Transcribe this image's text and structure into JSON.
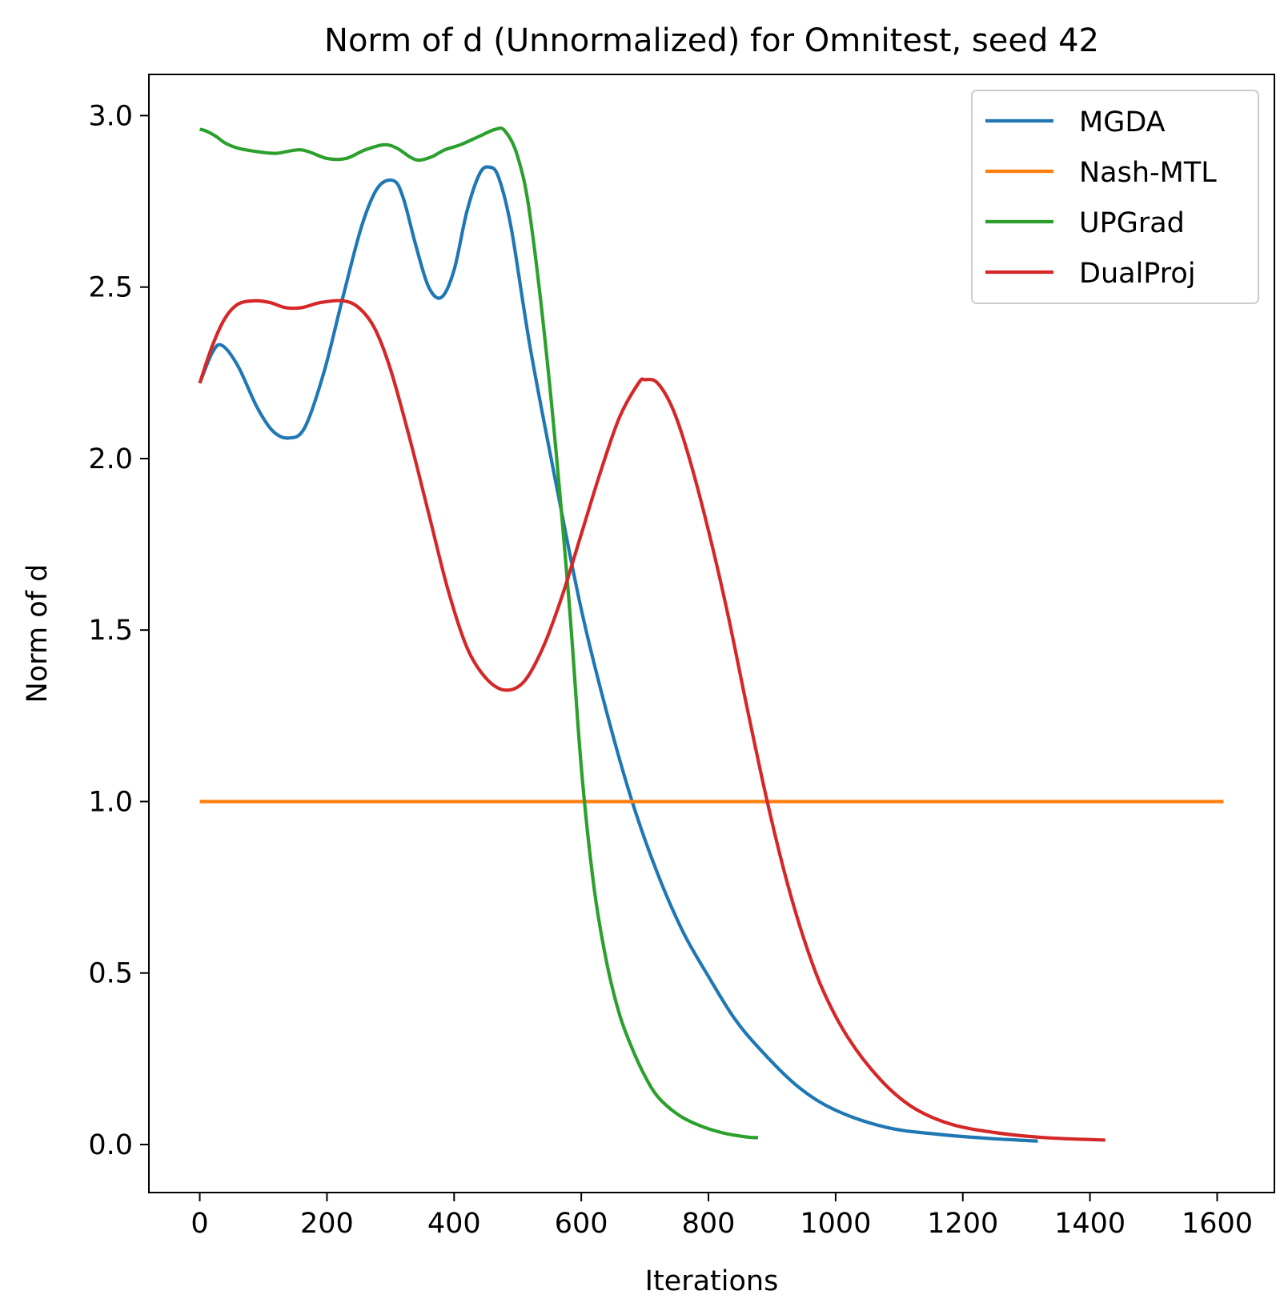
{
  "chart_data": {
    "type": "line",
    "title": "Norm of d (Unnormalized) for Omnitest, seed 42",
    "xlabel": "Iterations",
    "ylabel": "Norm of d",
    "xlim": [
      -80,
      1690
    ],
    "ylim": [
      -0.14,
      3.12
    ],
    "xticks": [
      0,
      200,
      400,
      600,
      800,
      1000,
      1200,
      1400,
      1600
    ],
    "xtick_labels": [
      "0",
      "200",
      "400",
      "600",
      "800",
      "1000",
      "1200",
      "1400",
      "1600"
    ],
    "yticks": [
      0.0,
      0.5,
      1.0,
      1.5,
      2.0,
      2.5,
      3.0
    ],
    "ytick_labels": [
      "0.0",
      "0.5",
      "1.0",
      "1.5",
      "2.0",
      "2.5",
      "3.0"
    ],
    "grid": false,
    "legend_position": "top-right",
    "series": [
      {
        "name": "MGDA",
        "color": "#1f77b4",
        "x": [
          0,
          20,
          35,
          60,
          90,
          115,
          140,
          165,
          195,
          225,
          255,
          280,
          305,
          320,
          340,
          360,
          380,
          400,
          420,
          440,
          455,
          470,
          490,
          520,
          560,
          600,
          640,
          680,
          720,
          760,
          800,
          840,
          880,
          940,
          1000,
          1080,
          1160,
          1240,
          1318
        ],
        "y": [
          2.22,
          2.31,
          2.33,
          2.27,
          2.15,
          2.08,
          2.06,
          2.09,
          2.25,
          2.47,
          2.68,
          2.79,
          2.81,
          2.76,
          2.62,
          2.5,
          2.47,
          2.55,
          2.72,
          2.83,
          2.85,
          2.82,
          2.67,
          2.32,
          1.93,
          1.56,
          1.26,
          1.0,
          0.79,
          0.62,
          0.49,
          0.37,
          0.28,
          0.17,
          0.1,
          0.05,
          0.03,
          0.018,
          0.01
        ]
      },
      {
        "name": "Nash-MTL",
        "color": "#ff7f0e",
        "x": [
          0,
          1610
        ],
        "y": [
          1.0,
          1.0
        ]
      },
      {
        "name": "UPGrad",
        "color": "#2ca02c",
        "x": [
          0,
          10,
          25,
          40,
          60,
          90,
          120,
          160,
          200,
          230,
          260,
          290,
          310,
          330,
          345,
          365,
          385,
          410,
          440,
          465,
          480,
          500,
          520,
          550,
          580,
          600,
          620,
          640,
          660,
          680,
          700,
          720,
          750,
          780,
          820,
          860,
          878
        ],
        "y": [
          2.96,
          2.955,
          2.94,
          2.92,
          2.905,
          2.895,
          2.89,
          2.9,
          2.875,
          2.875,
          2.9,
          2.915,
          2.905,
          2.88,
          2.87,
          2.88,
          2.9,
          2.915,
          2.94,
          2.96,
          2.955,
          2.88,
          2.7,
          2.22,
          1.6,
          1.1,
          0.75,
          0.53,
          0.38,
          0.28,
          0.2,
          0.14,
          0.09,
          0.06,
          0.035,
          0.022,
          0.02
        ]
      },
      {
        "name": "DualProj",
        "color": "#d62728",
        "x": [
          0,
          20,
          40,
          60,
          85,
          110,
          135,
          160,
          190,
          225,
          250,
          275,
          300,
          330,
          360,
          390,
          420,
          450,
          480,
          510,
          540,
          570,
          600,
          630,
          660,
          690,
          700,
          720,
          745,
          770,
          800,
          830,
          860,
          890,
          920,
          950,
          980,
          1020,
          1070,
          1120,
          1180,
          1250,
          1330,
          1424
        ],
        "y": [
          2.22,
          2.33,
          2.41,
          2.45,
          2.46,
          2.455,
          2.44,
          2.44,
          2.455,
          2.46,
          2.44,
          2.38,
          2.26,
          2.06,
          1.84,
          1.62,
          1.45,
          1.36,
          1.325,
          1.35,
          1.45,
          1.6,
          1.78,
          1.96,
          2.12,
          2.22,
          2.23,
          2.22,
          2.14,
          2.0,
          1.79,
          1.55,
          1.28,
          1.02,
          0.79,
          0.6,
          0.45,
          0.31,
          0.19,
          0.11,
          0.06,
          0.035,
          0.02,
          0.013
        ]
      }
    ]
  }
}
